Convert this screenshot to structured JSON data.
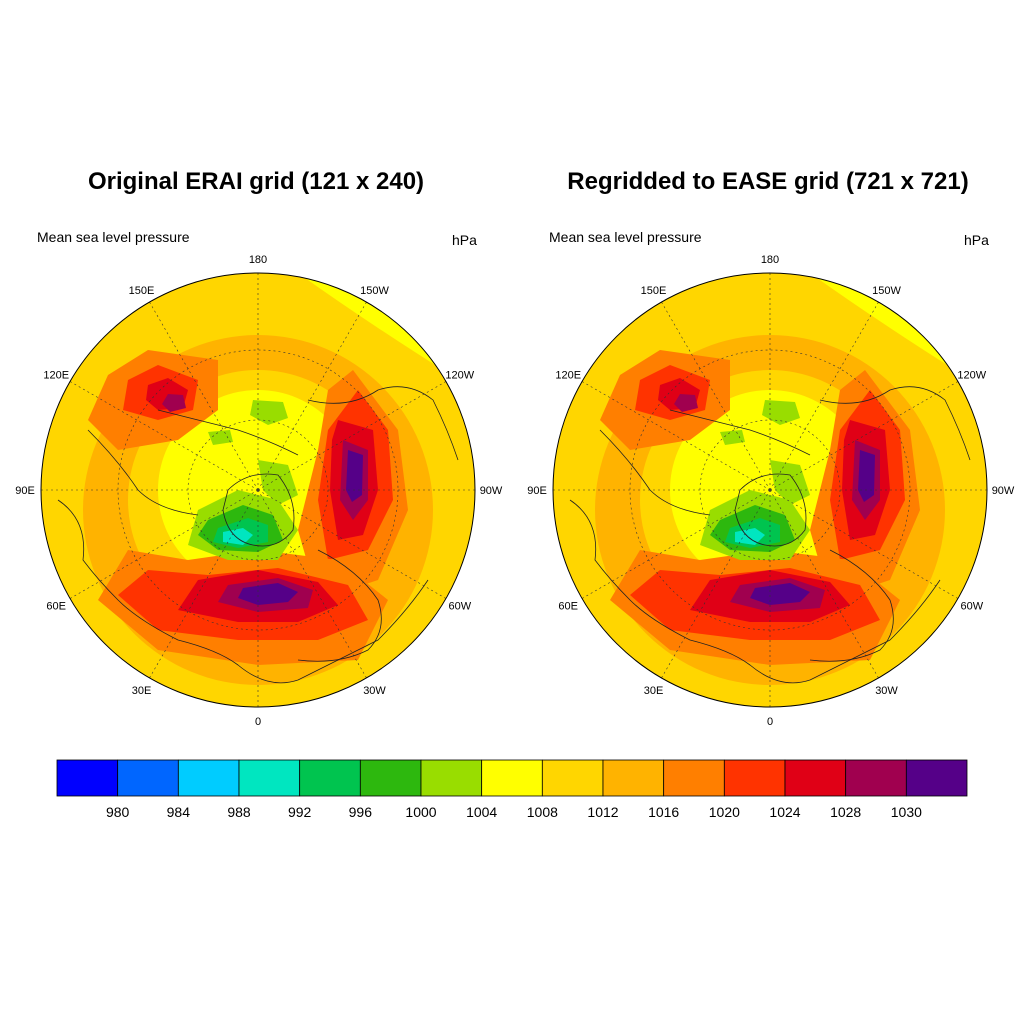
{
  "panels": [
    {
      "title": "Original ERAI grid (121 x 240)",
      "left_string": "Mean sea level pressure",
      "right_string": "hPa"
    },
    {
      "title": "Regridded to EASE grid (721 x 721)",
      "left_string": "Mean sea level pressure",
      "right_string": "hPa"
    }
  ],
  "map": {
    "projection": "north polar stereographic",
    "longitude_labels": [
      "180",
      "150E",
      "120E",
      "90E",
      "60E",
      "30E",
      "0",
      "30W",
      "60W",
      "90W",
      "120W",
      "150W"
    ],
    "latitude_circles": "dashed every 30 degrees",
    "coastlines": true
  },
  "colorbar": {
    "units": "hPa",
    "levels": [
      "980",
      "984",
      "988",
      "992",
      "996",
      "1000",
      "1004",
      "1008",
      "1012",
      "1016",
      "1020",
      "1024",
      "1028",
      "1030"
    ],
    "colors": [
      "#0000ff",
      "#0066ff",
      "#00ccff",
      "#00e6c0",
      "#00c44f",
      "#2db80e",
      "#99dd00",
      "#ffff00",
      "#ffd600",
      "#ffb300",
      "#ff7f00",
      "#ff3300",
      "#e00016",
      "#a0004f",
      "#550088"
    ]
  }
}
